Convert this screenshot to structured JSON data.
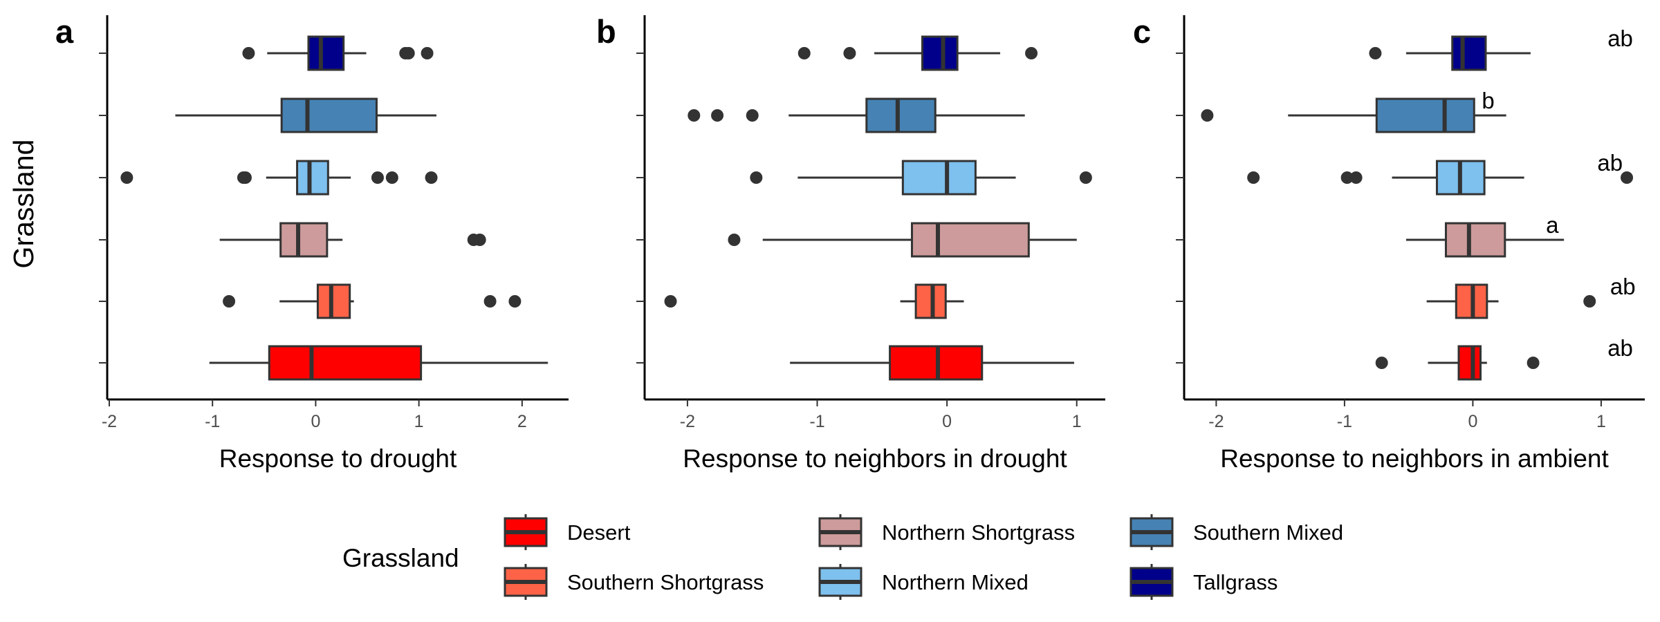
{
  "chart_data": {
    "type": "boxplot",
    "ylabel": "Grassland",
    "categories": [
      "Desert",
      "Southern Shortgrass",
      "Northern Shortgrass",
      "Northern Mixed",
      "Southern Mixed",
      "Tallgrass"
    ],
    "colors": {
      "Desert": "#ff0000",
      "Southern Shortgrass": "#ff6347",
      "Northern Shortgrass": "#cd9b9b",
      "Northern Mixed": "#7ec0ee",
      "Southern Mixed": "#4682b4",
      "Tallgrass": "#00008b"
    },
    "legend": {
      "title": "Grassland",
      "placement": "bottom",
      "entries": [
        "Desert",
        "Northern Shortgrass",
        "Southern Mixed",
        "Southern Shortgrass",
        "Northern Mixed",
        "Tallgrass"
      ]
    },
    "panels": [
      {
        "tag": "a",
        "xlabel": "Response to drought",
        "xlim": [
          -2.02,
          2.45
        ],
        "xticks": [
          -2,
          -1,
          0,
          1,
          2
        ],
        "xtick_labels": [
          "-2",
          "-1",
          "0",
          "1",
          "2"
        ],
        "boxes": [
          {
            "group": "Desert",
            "whisker_low": -1.03,
            "q1": -0.45,
            "median": -0.04,
            "q3": 1.02,
            "whisker_high": 2.25,
            "outliers": []
          },
          {
            "group": "Southern Shortgrass",
            "whisker_low": -0.35,
            "q1": 0.02,
            "median": 0.15,
            "q3": 0.33,
            "whisker_high": 0.37,
            "outliers": [
              -0.84,
              1.69,
              1.93
            ]
          },
          {
            "group": "Northern Shortgrass",
            "whisker_low": -0.93,
            "q1": -0.34,
            "median": -0.17,
            "q3": 0.11,
            "whisker_high": 0.26,
            "outliers": [
              1.53,
              1.59
            ]
          },
          {
            "group": "Northern Mixed",
            "whisker_low": -0.48,
            "q1": -0.18,
            "median": -0.06,
            "q3": 0.12,
            "whisker_high": 0.34,
            "outliers": [
              -1.83,
              -0.7,
              -0.68,
              0.6,
              0.74,
              1.12
            ]
          },
          {
            "group": "Southern Mixed",
            "whisker_low": -1.36,
            "q1": -0.33,
            "median": -0.08,
            "q3": 0.59,
            "whisker_high": 1.17,
            "outliers": []
          },
          {
            "group": "Tallgrass",
            "whisker_low": -0.47,
            "q1": -0.07,
            "median": 0.05,
            "q3": 0.27,
            "whisker_high": 0.49,
            "outliers": [
              -0.65,
              0.87,
              0.9,
              1.08
            ]
          }
        ],
        "annotations": []
      },
      {
        "tag": "b",
        "xlabel": "Response to neighbors in drought",
        "xlim": [
          -2.33,
          1.22
        ],
        "xticks": [
          -2,
          -1,
          0,
          1
        ],
        "xtick_labels": [
          "-2",
          "-1",
          "0",
          "1"
        ],
        "boxes": [
          {
            "group": "Desert",
            "whisker_low": -1.21,
            "q1": -0.44,
            "median": -0.07,
            "q3": 0.27,
            "whisker_high": 0.98,
            "outliers": []
          },
          {
            "group": "Southern Shortgrass",
            "whisker_low": -0.36,
            "q1": -0.24,
            "median": -0.11,
            "q3": -0.01,
            "whisker_high": 0.13,
            "outliers": [
              -2.13
            ]
          },
          {
            "group": "Northern Shortgrass",
            "whisker_low": -1.42,
            "q1": -0.27,
            "median": -0.07,
            "q3": 0.63,
            "whisker_high": 1.0,
            "outliers": [
              -1.64
            ]
          },
          {
            "group": "Northern Mixed",
            "whisker_low": -1.15,
            "q1": -0.34,
            "median": 0.0,
            "q3": 0.22,
            "whisker_high": 0.53,
            "outliers": [
              -1.47,
              1.07
            ]
          },
          {
            "group": "Southern Mixed",
            "whisker_low": -1.22,
            "q1": -0.62,
            "median": -0.38,
            "q3": -0.09,
            "whisker_high": 0.6,
            "outliers": [
              -1.95,
              -1.77,
              -1.5
            ]
          },
          {
            "group": "Tallgrass",
            "whisker_low": -0.56,
            "q1": -0.19,
            "median": -0.03,
            "q3": 0.08,
            "whisker_high": 0.41,
            "outliers": [
              -1.1,
              -0.75,
              0.65
            ]
          }
        ],
        "annotations": []
      },
      {
        "tag": "c",
        "xlabel": "Response to neighbors in ambient",
        "xlim": [
          -2.25,
          1.34
        ],
        "xticks": [
          -2,
          -1,
          0,
          1
        ],
        "xtick_labels": [
          "-2",
          "-1",
          "0",
          "1"
        ],
        "boxes": [
          {
            "group": "Desert",
            "whisker_low": -0.35,
            "q1": -0.11,
            "median": 0.0,
            "q3": 0.06,
            "whisker_high": 0.11,
            "outliers": [
              -0.71,
              0.47
            ]
          },
          {
            "group": "Southern Shortgrass",
            "whisker_low": -0.36,
            "q1": -0.13,
            "median": 0.0,
            "q3": 0.11,
            "whisker_high": 0.2,
            "outliers": [
              0.91
            ]
          },
          {
            "group": "Northern Shortgrass",
            "whisker_low": -0.52,
            "q1": -0.21,
            "median": -0.03,
            "q3": 0.25,
            "whisker_high": 0.71,
            "outliers": []
          },
          {
            "group": "Northern Mixed",
            "whisker_low": -0.63,
            "q1": -0.28,
            "median": -0.1,
            "q3": 0.09,
            "whisker_high": 0.4,
            "outliers": [
              -1.71,
              -0.98,
              -0.91,
              1.2
            ]
          },
          {
            "group": "Southern Mixed",
            "whisker_low": -1.44,
            "q1": -0.75,
            "median": -0.22,
            "q3": 0.01,
            "whisker_high": 0.26,
            "outliers": [
              -2.07
            ]
          },
          {
            "group": "Tallgrass",
            "whisker_low": -0.52,
            "q1": -0.16,
            "median": -0.08,
            "q3": 0.1,
            "whisker_high": 0.45,
            "outliers": [
              -0.76
            ]
          }
        ],
        "annotations": [
          {
            "group": "Desert",
            "label": "ab",
            "x": 1.05
          },
          {
            "group": "Southern Shortgrass",
            "label": "ab",
            "x": 1.07
          },
          {
            "group": "Northern Shortgrass",
            "label": "a",
            "x": 0.57
          },
          {
            "group": "Northern Mixed",
            "label": "ab",
            "x": 0.97
          },
          {
            "group": "Southern Mixed",
            "label": "b",
            "x": 0.07
          },
          {
            "group": "Tallgrass",
            "label": "ab",
            "x": 1.05
          }
        ]
      }
    ]
  }
}
